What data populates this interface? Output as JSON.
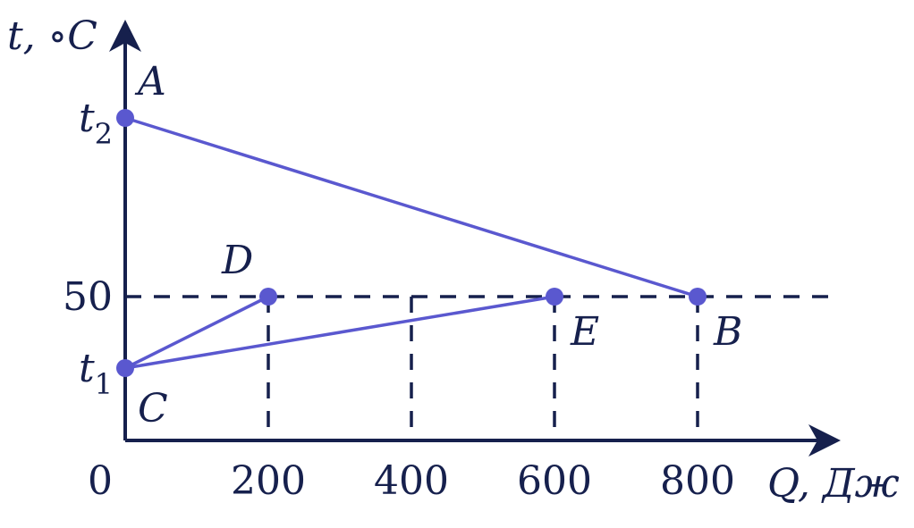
{
  "chart_data": {
    "type": "line",
    "xlabel": "Q, Дж",
    "ylabel": "t, ∘C",
    "x_ticks": [
      "0",
      "200",
      "400",
      "600",
      "800"
    ],
    "y_ticks": [
      {
        "label": "t",
        "sub": "2",
        "value": 125
      },
      {
        "label": "50",
        "value": 50
      },
      {
        "label": "t",
        "sub": "1",
        "value": 20
      }
    ],
    "xlim": [
      0,
      1000
    ],
    "ylim": [
      -10,
      170
    ],
    "points": [
      {
        "name": "A",
        "x": 0,
        "y": 125
      },
      {
        "name": "B",
        "x": 800,
        "y": 50
      },
      {
        "name": "C",
        "x": 0,
        "y": 20
      },
      {
        "name": "D",
        "x": 200,
        "y": 50
      },
      {
        "name": "E",
        "x": 600,
        "y": 50
      }
    ],
    "segments": [
      [
        "A",
        "B"
      ],
      [
        "C",
        "D"
      ],
      [
        "C",
        "E"
      ]
    ],
    "guides": {
      "horizontal_at": 50,
      "vertical_at": [
        200,
        400,
        600,
        800
      ]
    },
    "colors": {
      "series": "#5a58cf",
      "axes": "#16204d"
    }
  }
}
